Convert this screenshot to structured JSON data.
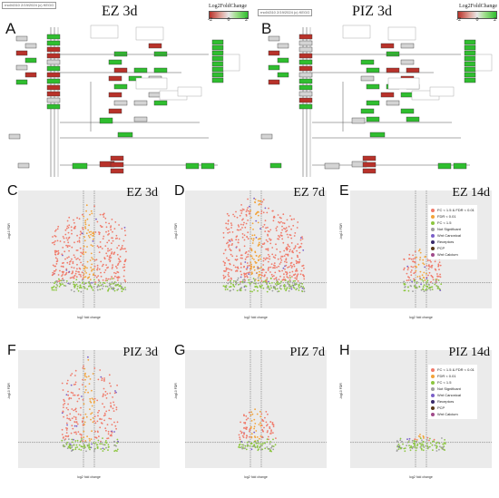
{
  "panels": {
    "A": {
      "letter": "A",
      "title": "EZ 3d",
      "map_id": "rno04310 2/19/2024 (c) KEGG"
    },
    "B": {
      "letter": "B",
      "title": "PIZ 3d",
      "map_id": "rno04310 2/19/2024 (c) KEGG"
    }
  },
  "fold_change_legend": {
    "label": "Log2FoldChange",
    "ticks": [
      "-2",
      "0",
      "2"
    ],
    "colors": {
      "down": "#b8322a",
      "neutral": "#e8e8e8",
      "up": "#2fbe2f"
    }
  },
  "volcano_legend": {
    "entries": [
      {
        "label": "FC < 1.5 & FDR < 0.01",
        "color": "#f07a6a"
      },
      {
        "label": "FDR < 0.01",
        "color": "#f2a33a"
      },
      {
        "label": "FC < 1.5",
        "color": "#8cc63f"
      },
      {
        "label": "Not Significant",
        "color": "#9e9e9e"
      },
      {
        "label": "Wnt Canonical",
        "color": "#7b5fc8"
      },
      {
        "label": "Receptors",
        "color": "#3a2a6a"
      },
      {
        "label": "PCP",
        "color": "#5a3a1a"
      },
      {
        "label": "Wnt Calcium",
        "color": "#a04a8a"
      }
    ]
  },
  "chart_data": [
    {
      "type": "scatter",
      "panel": "C",
      "title": "EZ 3d",
      "xlabel": "log2 fold change",
      "ylabel": "-log10 FDR",
      "density": "high",
      "spread": "wide"
    },
    {
      "type": "scatter",
      "panel": "D",
      "title": "EZ 7d",
      "xlabel": "log2 fold change",
      "ylabel": "-log10 FDR",
      "density": "very-high",
      "spread": "wide-right"
    },
    {
      "type": "scatter",
      "panel": "E",
      "title": "EZ 14d",
      "xlabel": "log2 fold change",
      "ylabel": "-log10 FDR",
      "density": "low",
      "spread": "narrow"
    },
    {
      "type": "scatter",
      "panel": "F",
      "title": "PIZ 3d",
      "xlabel": "log2 fold change",
      "ylabel": "-log10 FDR",
      "density": "medium",
      "spread": "medium"
    },
    {
      "type": "scatter",
      "panel": "G",
      "title": "PIZ 7d",
      "xlabel": "log2 fold change",
      "ylabel": "-log10 FDR",
      "density": "low",
      "spread": "narrow"
    },
    {
      "type": "scatter",
      "panel": "H",
      "title": "PIZ 14d",
      "xlabel": "log2 fold change",
      "ylabel": "-log10 FDR",
      "density": "very-low",
      "spread": "flat"
    }
  ]
}
